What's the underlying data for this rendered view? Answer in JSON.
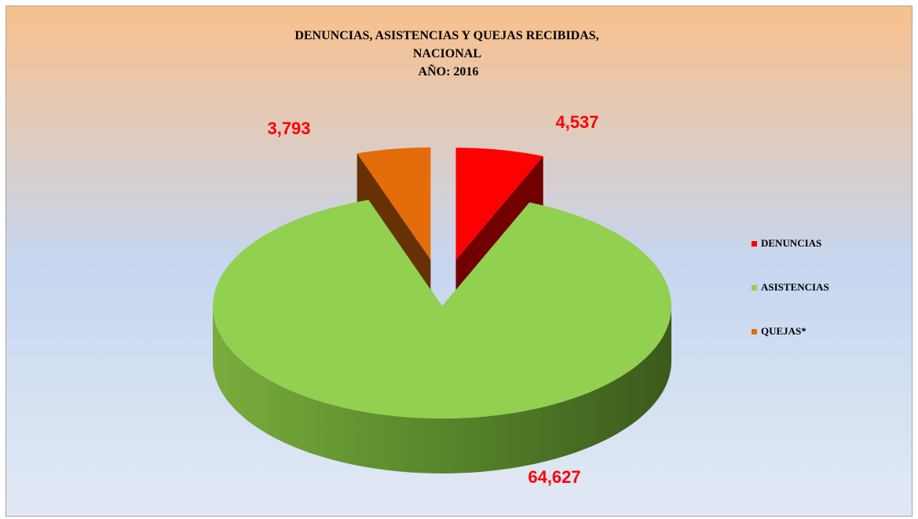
{
  "chart_data": {
    "type": "pie",
    "title": [
      "DENUNCIAS, ASISTENCIAS Y QUEJAS RECIBIDAS,",
      "NACIONAL",
      "AÑO: 2016"
    ],
    "categories": [
      "DENUNCIAS",
      "ASISTENCIAS",
      "QUEJAS*"
    ],
    "values": [
      4537,
      64627,
      3793
    ],
    "value_labels": [
      "4,537",
      "64,627",
      "3,793"
    ],
    "colors": [
      "#ff0000",
      "#92d050",
      "#e46c0a"
    ],
    "exploded": [
      true,
      false,
      true
    ],
    "legend": "right"
  }
}
